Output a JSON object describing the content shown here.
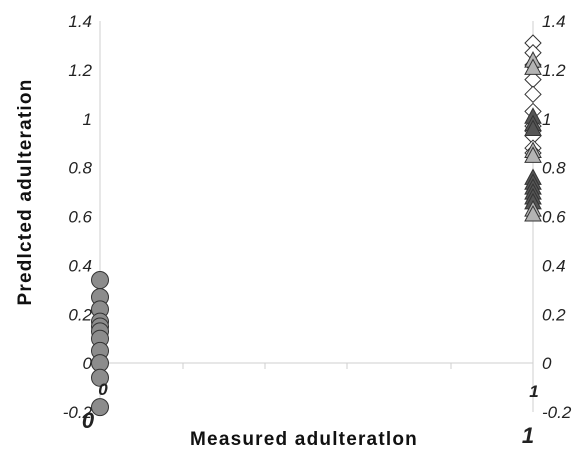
{
  "chart_data": {
    "type": "scatter",
    "title": "",
    "xlabel": "Measured adulteratlon",
    "ylabel": "Predlcted adulteration",
    "xlim": [
      0,
      1
    ],
    "ylim": [
      -0.2,
      1.4
    ],
    "y_ticks": [
      "1.4",
      "1.2",
      "1",
      "0.8",
      "0.6",
      "0.4",
      "0.2",
      "0",
      "-0.2"
    ],
    "x_tick_labels": {
      "left_inner": "0",
      "right_inner": "1",
      "left_outer": "0",
      "right_outer": "1"
    },
    "grid": false,
    "series": [
      {
        "marker": "circle",
        "fill": "#8c8c8c",
        "points": [
          [
            0,
            0.34
          ],
          [
            0,
            0.27
          ],
          [
            0,
            0.22
          ],
          [
            0,
            0.17
          ],
          [
            0,
            0.15
          ],
          [
            0,
            0.13
          ],
          [
            0,
            0.1
          ],
          [
            0,
            0.05
          ],
          [
            0,
            0.0
          ],
          [
            0,
            -0.06
          ],
          [
            0,
            -0.18
          ]
        ]
      },
      {
        "marker": "diamond",
        "fill": "#ffffff",
        "points": [
          [
            1,
            1.31
          ],
          [
            1,
            1.27
          ],
          [
            1,
            1.22
          ],
          [
            1,
            1.16
          ],
          [
            1,
            1.1
          ],
          [
            1,
            1.03
          ],
          [
            1,
            0.97
          ],
          [
            1,
            0.95
          ],
          [
            1,
            0.93
          ],
          [
            1,
            0.88
          ],
          [
            1,
            0.86
          ]
        ]
      },
      {
        "marker": "triangle",
        "fill": "#555555",
        "points": [
          [
            1,
            1.01
          ],
          [
            1,
            0.98
          ],
          [
            1,
            0.96
          ],
          [
            1,
            0.76
          ],
          [
            1,
            0.74
          ],
          [
            1,
            0.72
          ],
          [
            1,
            0.7
          ],
          [
            1,
            0.68
          ],
          [
            1,
            0.66
          ]
        ]
      },
      {
        "marker": "triangle",
        "fill": "#b4b4b4",
        "points": [
          [
            1,
            1.24
          ],
          [
            1,
            1.21
          ],
          [
            1,
            0.87
          ],
          [
            1,
            0.85
          ],
          [
            1,
            0.63
          ],
          [
            1,
            0.61
          ]
        ]
      }
    ]
  }
}
